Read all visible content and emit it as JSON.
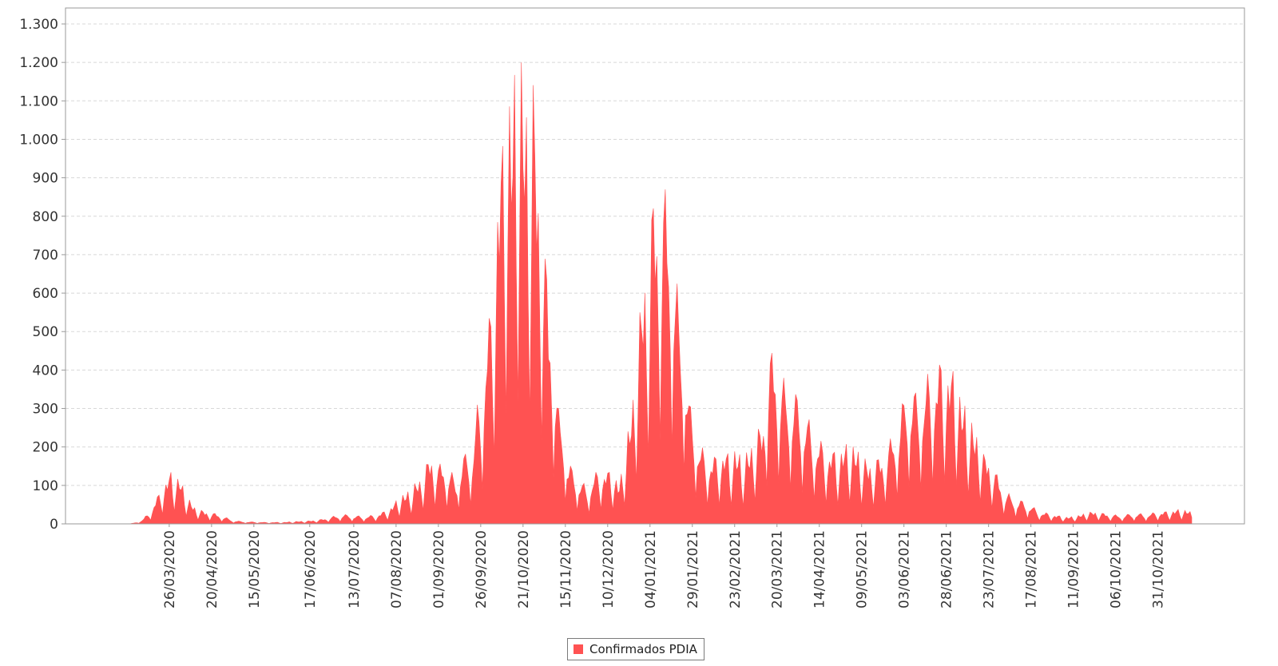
{
  "chart_data": {
    "type": "area",
    "xlabel": "",
    "ylabel": "",
    "ylim": [
      0,
      1300
    ],
    "yticks": [
      0,
      100,
      200,
      300,
      400,
      500,
      600,
      700,
      800,
      900,
      1000,
      1100,
      1200,
      1300
    ],
    "ytick_labels": [
      "0",
      "100",
      "200",
      "300",
      "400",
      "500",
      "600",
      "700",
      "800",
      "900",
      "1.000",
      "1.100",
      "1.200",
      "1.300"
    ],
    "x_range": [
      "02/03/2020",
      "20/11/2021"
    ],
    "xtick_dates": [
      "26/03/2020",
      "20/04/2020",
      "15/05/2020",
      "17/06/2020",
      "13/07/2020",
      "07/08/2020",
      "01/09/2020",
      "26/09/2020",
      "21/10/2020",
      "15/11/2020",
      "10/12/2020",
      "04/01/2021",
      "29/01/2021",
      "23/02/2021",
      "20/03/2021",
      "14/04/2021",
      "09/05/2021",
      "03/06/2021",
      "28/06/2021",
      "23/07/2021",
      "17/08/2021",
      "11/09/2021",
      "06/10/2021",
      "31/10/2021"
    ],
    "grid": true,
    "legend_position": "bottom-center",
    "color": "#ff5252",
    "series": [
      {
        "name": "Confirmados PDIA",
        "weekday_peaks": [
          [
            "02/03/2020",
            0
          ],
          [
            "05/03/2020",
            2
          ],
          [
            "09/03/2020",
            8
          ],
          [
            "11/03/2020",
            15
          ],
          [
            "13/03/2020",
            25
          ],
          [
            "16/03/2020",
            45
          ],
          [
            "18/03/2020",
            65
          ],
          [
            "20/03/2020",
            80
          ],
          [
            "23/03/2020",
            110
          ],
          [
            "25/03/2020",
            125
          ],
          [
            "27/03/2020",
            135
          ],
          [
            "30/03/2020",
            120
          ],
          [
            "01/04/2020",
            125
          ],
          [
            "03/04/2020",
            100
          ],
          [
            "06/04/2020",
            70
          ],
          [
            "08/04/2020",
            55
          ],
          [
            "10/04/2020",
            45
          ],
          [
            "13/04/2020",
            38
          ],
          [
            "16/04/2020",
            32
          ],
          [
            "20/04/2020",
            30
          ],
          [
            "24/04/2020",
            25
          ],
          [
            "28/04/2020",
            18
          ],
          [
            "02/05/2020",
            10
          ],
          [
            "08/05/2020",
            6
          ],
          [
            "15/05/2020",
            5
          ],
          [
            "22/05/2020",
            4
          ],
          [
            "01/06/2020",
            4
          ],
          [
            "08/06/2020",
            6
          ],
          [
            "17/06/2020",
            8
          ],
          [
            "24/06/2020",
            12
          ],
          [
            "01/07/2020",
            20
          ],
          [
            "07/07/2020",
            25
          ],
          [
            "13/07/2020",
            22
          ],
          [
            "20/07/2020",
            20
          ],
          [
            "27/07/2020",
            25
          ],
          [
            "01/08/2020",
            35
          ],
          [
            "04/08/2020",
            45
          ],
          [
            "07/08/2020",
            60
          ],
          [
            "10/08/2020",
            75
          ],
          [
            "14/08/2020",
            85
          ],
          [
            "17/08/2020",
            100
          ],
          [
            "21/08/2020",
            120
          ],
          [
            "24/08/2020",
            150
          ],
          [
            "28/08/2020",
            185
          ],
          [
            "01/09/2020",
            155
          ],
          [
            "04/09/2020",
            165
          ],
          [
            "07/09/2020",
            150
          ],
          [
            "11/09/2020",
            120
          ],
          [
            "14/09/2020",
            160
          ],
          [
            "18/09/2020",
            200
          ],
          [
            "21/09/2020",
            195
          ],
          [
            "24/09/2020",
            310
          ],
          [
            "27/09/2020",
            360
          ],
          [
            "30/09/2020",
            530
          ],
          [
            "03/10/2020",
            580
          ],
          [
            "06/10/2020",
            940
          ],
          [
            "09/10/2020",
            1000
          ],
          [
            "12/10/2020",
            1190
          ],
          [
            "15/10/2020",
            1120
          ],
          [
            "18/10/2020",
            1270
          ],
          [
            "21/10/2020",
            1180
          ],
          [
            "24/10/2020",
            1080
          ],
          [
            "27/10/2020",
            1150
          ],
          [
            "30/10/2020",
            940
          ],
          [
            "02/11/2020",
            820
          ],
          [
            "05/11/2020",
            580
          ],
          [
            "08/11/2020",
            480
          ],
          [
            "11/11/2020",
            300
          ],
          [
            "14/11/2020",
            260
          ],
          [
            "17/11/2020",
            160
          ],
          [
            "21/11/2020",
            140
          ],
          [
            "25/11/2020",
            110
          ],
          [
            "28/11/2020",
            100
          ],
          [
            "02/12/2020",
            130
          ],
          [
            "06/12/2020",
            150
          ],
          [
            "10/12/2020",
            140
          ],
          [
            "14/12/2020",
            140
          ],
          [
            "17/12/2020",
            100
          ],
          [
            "21/12/2020",
            220
          ],
          [
            "25/12/2020",
            330
          ],
          [
            "28/12/2020",
            500
          ],
          [
            "31/12/2020",
            650
          ],
          [
            "03/01/2021",
            700
          ],
          [
            "06/01/2021",
            880
          ],
          [
            "09/01/2021",
            860
          ],
          [
            "12/01/2021",
            890
          ],
          [
            "15/01/2021",
            850
          ],
          [
            "18/01/2021",
            750
          ],
          [
            "21/01/2021",
            570
          ],
          [
            "24/01/2021",
            540
          ],
          [
            "27/01/2021",
            330
          ],
          [
            "31/01/2021",
            270
          ],
          [
            "03/02/2021",
            200
          ],
          [
            "06/02/2021",
            195
          ],
          [
            "10/02/2021",
            175
          ],
          [
            "14/02/2021",
            190
          ],
          [
            "17/02/2021",
            195
          ],
          [
            "20/02/2021",
            180
          ],
          [
            "23/02/2021",
            200
          ],
          [
            "27/02/2021",
            175
          ],
          [
            "03/03/2021",
            190
          ],
          [
            "06/03/2021",
            220
          ],
          [
            "09/03/2021",
            250
          ],
          [
            "12/03/2021",
            270
          ],
          [
            "15/03/2021",
            450
          ],
          [
            "18/03/2021",
            460
          ],
          [
            "21/03/2021",
            420
          ],
          [
            "24/03/2021",
            380
          ],
          [
            "27/03/2021",
            360
          ],
          [
            "31/03/2021",
            350
          ],
          [
            "03/04/2021",
            330
          ],
          [
            "06/04/2021",
            300
          ],
          [
            "09/04/2021",
            260
          ],
          [
            "12/04/2021",
            240
          ],
          [
            "16/04/2021",
            210
          ],
          [
            "20/04/2021",
            200
          ],
          [
            "24/04/2021",
            190
          ],
          [
            "28/04/2021",
            205
          ],
          [
            "02/05/2021",
            210
          ],
          [
            "06/05/2021",
            200
          ],
          [
            "09/05/2021",
            180
          ],
          [
            "13/05/2021",
            160
          ],
          [
            "17/05/2021",
            170
          ],
          [
            "20/05/2021",
            180
          ],
          [
            "24/05/2021",
            195
          ],
          [
            "28/05/2021",
            250
          ],
          [
            "01/06/2021",
            290
          ],
          [
            "04/06/2021",
            370
          ],
          [
            "07/06/2021",
            380
          ],
          [
            "10/06/2021",
            350
          ],
          [
            "14/06/2021",
            360
          ],
          [
            "17/06/2021",
            390
          ],
          [
            "21/06/2021",
            400
          ],
          [
            "24/06/2021",
            430
          ],
          [
            "28/06/2021",
            420
          ],
          [
            "01/07/2021",
            410
          ],
          [
            "04/07/2021",
            380
          ],
          [
            "07/07/2021",
            330
          ],
          [
            "11/07/2021",
            290
          ],
          [
            "14/07/2021",
            250
          ],
          [
            "17/07/2021",
            240
          ],
          [
            "20/07/2021",
            185
          ],
          [
            "23/07/2021",
            175
          ],
          [
            "26/07/2021",
            150
          ],
          [
            "29/07/2021",
            120
          ],
          [
            "01/08/2021",
            90
          ],
          [
            "05/08/2021",
            75
          ],
          [
            "09/08/2021",
            65
          ],
          [
            "13/08/2021",
            60
          ],
          [
            "17/08/2021",
            50
          ],
          [
            "21/08/2021",
            35
          ],
          [
            "25/08/2021",
            30
          ],
          [
            "30/08/2021",
            25
          ],
          [
            "04/09/2021",
            20
          ],
          [
            "09/09/2021",
            18
          ],
          [
            "14/09/2021",
            22
          ],
          [
            "19/09/2021",
            30
          ],
          [
            "24/09/2021",
            32
          ],
          [
            "29/09/2021",
            28
          ],
          [
            "04/10/2021",
            25
          ],
          [
            "09/10/2021",
            22
          ],
          [
            "14/10/2021",
            26
          ],
          [
            "19/10/2021",
            28
          ],
          [
            "24/10/2021",
            25
          ],
          [
            "29/10/2021",
            30
          ],
          [
            "03/11/2021",
            32
          ],
          [
            "08/11/2021",
            35
          ],
          [
            "13/11/2021",
            38
          ],
          [
            "18/11/2021",
            35
          ],
          [
            "20/11/2021",
            30
          ]
        ],
        "weekly_trough_ratio": 0.25
      }
    ]
  },
  "legend": {
    "label": "Confirmados PDIA",
    "color": "#ff5252"
  }
}
